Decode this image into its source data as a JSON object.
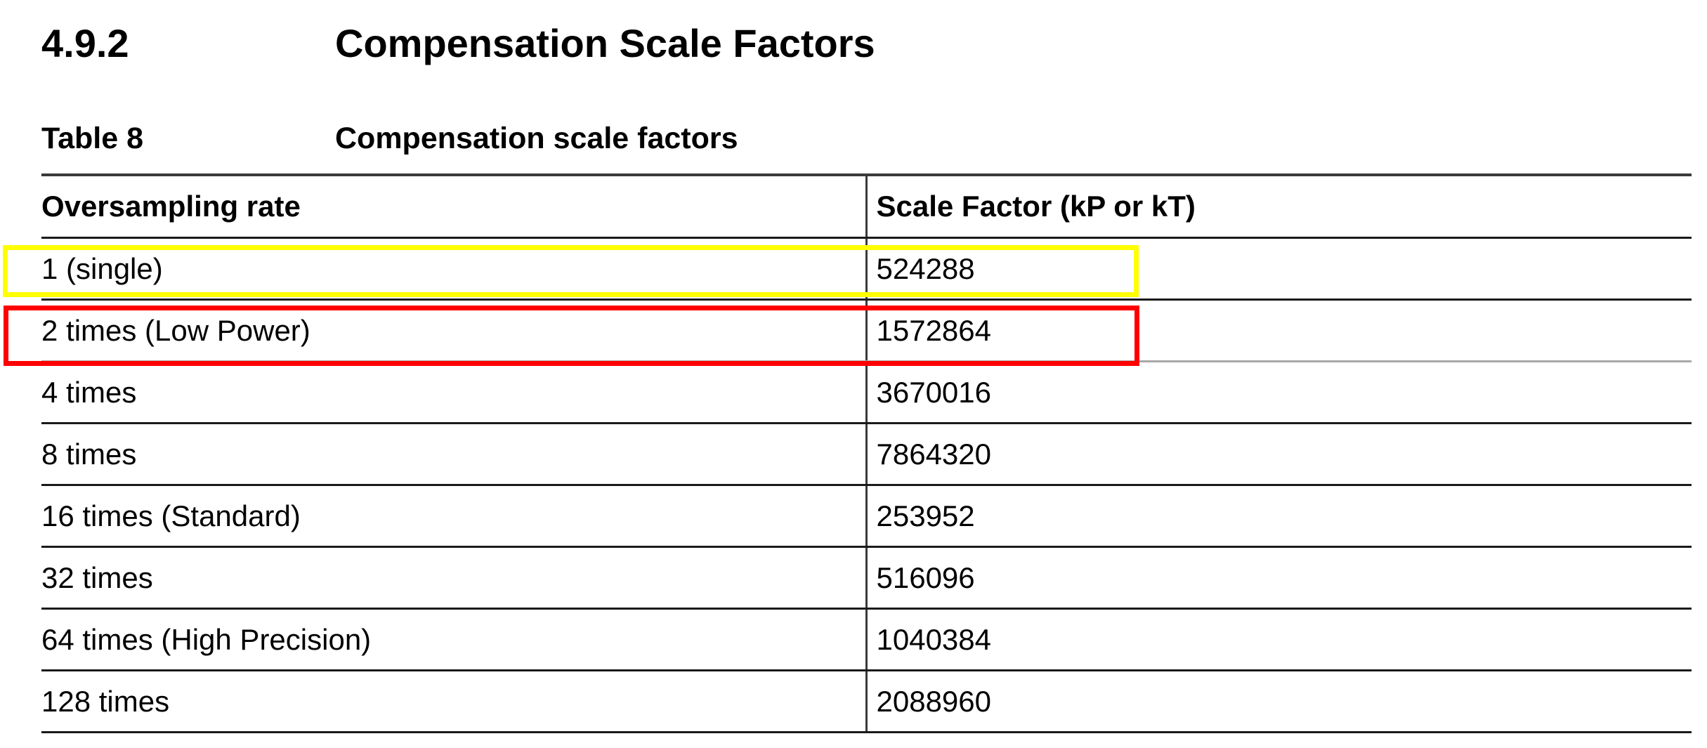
{
  "section": {
    "number": "4.9.2",
    "title": "Compensation Scale Factors"
  },
  "table_caption": {
    "label": "Table 8",
    "title": "Compensation scale factors"
  },
  "table": {
    "headers": [
      "Oversampling rate",
      "Scale Factor (kP or kT)"
    ],
    "rows": [
      {
        "rate": "1 (single)",
        "factor": "524288"
      },
      {
        "rate": "2 times (Low Power)",
        "factor": "1572864"
      },
      {
        "rate": "4 times",
        "factor": "3670016"
      },
      {
        "rate": "8 times",
        "factor": "7864320"
      },
      {
        "rate": "16 times (Standard)",
        "factor": "253952"
      },
      {
        "rate": "32 times",
        "factor": "516096"
      },
      {
        "rate": "64 times (High Precision)",
        "factor": "1040384"
      },
      {
        "rate": "128 times",
        "factor": "2088960"
      }
    ]
  },
  "annotations": {
    "highlight_yellow_color": "#ffff00",
    "highlight_red_color": "#ff0000"
  }
}
